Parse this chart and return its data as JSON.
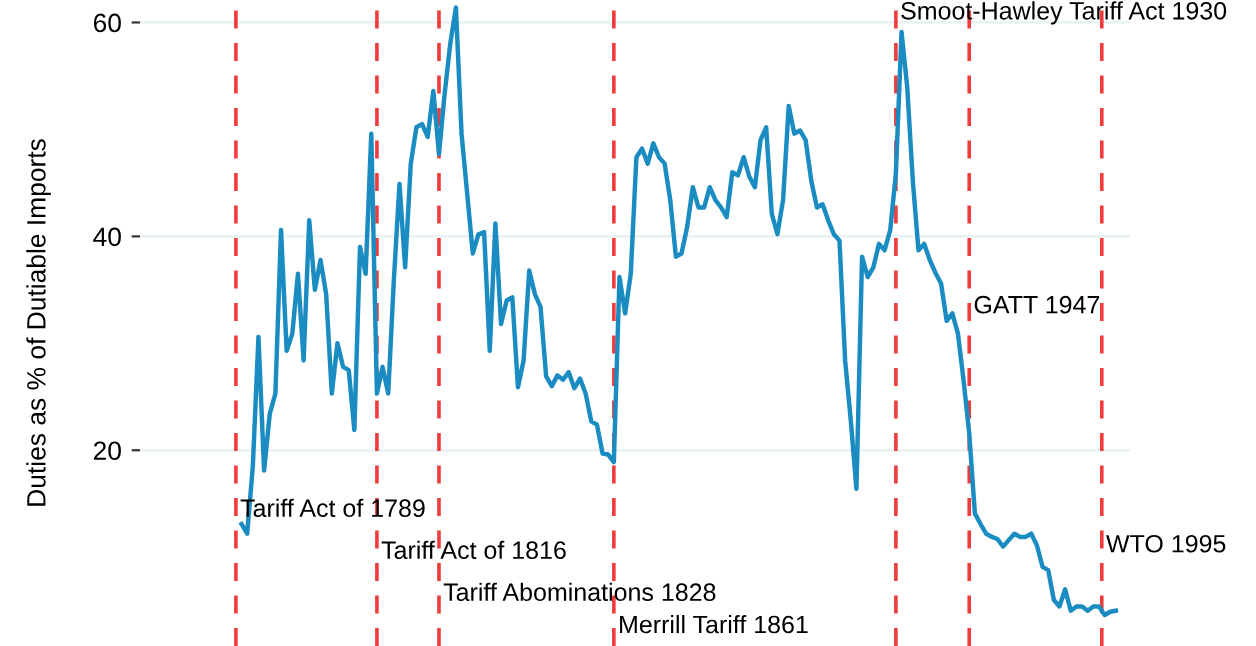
{
  "chart_data": {
    "type": "line",
    "ylabel": "Duties as % of Dutiable Imports",
    "categories": [
      null,
      null,
      null,
      null,
      null,
      null,
      null,
      null,
      null,
      null,
      null,
      null,
      null,
      null,
      null,
      null,
      null,
      null,
      null,
      null,
      null,
      null,
      null,
      null,
      null,
      null,
      null,
      null,
      null,
      null,
      null,
      null,
      null,
      null,
      null,
      null,
      null,
      null,
      null,
      null,
      null,
      null,
      null,
      null,
      null,
      null,
      null,
      null,
      null,
      null,
      null,
      null,
      null,
      null,
      null,
      null,
      null,
      null,
      null,
      null,
      null,
      null,
      null,
      null,
      null,
      null,
      null,
      null,
      null,
      null,
      null,
      null,
      null,
      null,
      null,
      null,
      null,
      null,
      null,
      null,
      null,
      null,
      null,
      null,
      null,
      null,
      null,
      null,
      null,
      null,
      null,
      null,
      null,
      null,
      null,
      null,
      null,
      null,
      null,
      null,
      null,
      null,
      null,
      null,
      null,
      null,
      null,
      null,
      null,
      null,
      null,
      null,
      null,
      null,
      null,
      null,
      null,
      null,
      null,
      null,
      null,
      null,
      null,
      null,
      null,
      null,
      null,
      null,
      null,
      null,
      null,
      null,
      null,
      null,
      null,
      null,
      null,
      null,
      null,
      null,
      null,
      null,
      null,
      null,
      null,
      null,
      null,
      null,
      null,
      null,
      null,
      null,
      null,
      null,
      null,
      null
    ],
    "series": [
      {
        "color": "#1a8cc2",
        "values": [
          13.1,
          12.2,
          18.5,
          30.6,
          18.1,
          23.4,
          25.3,
          40.6,
          29.3,
          30.9,
          36.5,
          28.4,
          41.5,
          35.0,
          37.8,
          34.6,
          25.3,
          30.0,
          27.8,
          27.5,
          21.9,
          39.0,
          36.5,
          49.6,
          25.3,
          27.8,
          25.3,
          35.9,
          44.9,
          37.1,
          46.8,
          50.2,
          50.5,
          49.3,
          53.6,
          47.7,
          53.3,
          58.0,
          61.4,
          49.6,
          44.0,
          38.4,
          40.2,
          40.4,
          29.3,
          41.2,
          31.8,
          34.0,
          34.3,
          25.9,
          28.4,
          36.8,
          34.6,
          33.4,
          26.9,
          26.0,
          27.0,
          26.6,
          27.3,
          25.8,
          26.7,
          25.3,
          22.7,
          22.4,
          19.7,
          19.6,
          18.9,
          36.2,
          32.8,
          36.5,
          47.4,
          48.2,
          46.8,
          48.7,
          47.4,
          46.8,
          43.4,
          38.1,
          38.4,
          40.9,
          44.6,
          42.7,
          42.7,
          44.6,
          43.4,
          42.7,
          41.8,
          46.0,
          45.7,
          47.4,
          45.6,
          44.6,
          49.0,
          50.2,
          42.1,
          40.2,
          43.4,
          52.2,
          49.6,
          49.9,
          49.0,
          45.2,
          42.7,
          43.0,
          41.5,
          40.2,
          39.6,
          28.4,
          22.8,
          16.4,
          38.1,
          36.2,
          37.1,
          39.3,
          38.7,
          40.6,
          45.9,
          59.1,
          54.0,
          45.2,
          38.7,
          39.3,
          37.8,
          36.6,
          35.6,
          32.1,
          32.8,
          30.9,
          26.5,
          21.6,
          14.1,
          13.1,
          12.2,
          11.9,
          11.7,
          11.0,
          11.6,
          12.2,
          11.9,
          11.9,
          12.2,
          11.1,
          9.1,
          8.8,
          6.0,
          5.4,
          7.0,
          5.0,
          5.4,
          5.4,
          5.0,
          5.4,
          5.4,
          4.6,
          4.9,
          5.0
        ]
      }
    ],
    "ylim": [
      1.7,
      62.1
    ],
    "yticks": [
      20,
      40,
      60
    ],
    "grid": "y",
    "annotations": [
      "Tariff Act of 1789",
      "Tariff Act of 1816",
      "Tariff Abominations 1828",
      "Merrill Tariff 1861",
      "Smoot-Hawley Tariff Act 1930",
      "GATT 1947",
      "WTO 1995"
    ]
  }
}
